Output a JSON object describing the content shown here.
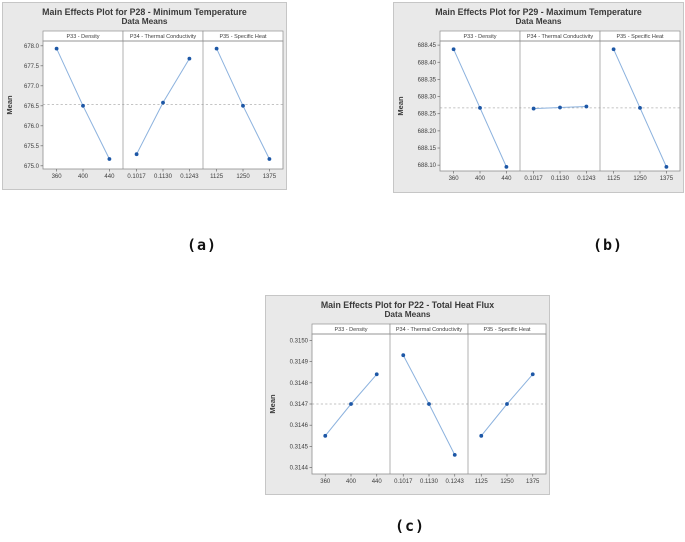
{
  "colors": {
    "figure_bg": "#e9e9e9",
    "plot_bg": "#ffffff",
    "border": "#8f8f8f",
    "tick": "#6b6b6b",
    "text": "#3d3d3d",
    "title_text": "#3a3a3a",
    "line": "#8cb2de",
    "marker": "#1d57a6",
    "mean_line": "#b0b0b0",
    "caption_text": "#111111"
  },
  "chart_data": [
    {
      "type": "line",
      "caption": "(a)",
      "title": "Main Effects Plot for P28 - Minimum Temperature",
      "subtitle": "Data Means",
      "ylabel": "Mean",
      "ylim": [
        674.92,
        678.12
      ],
      "yticks": [
        "678.0",
        "677.5",
        "677.0",
        "676.5",
        "676.0",
        "675.5",
        "675.0"
      ],
      "grand_mean": 676.53,
      "legend": "none",
      "grid": "mean-reference-line-only",
      "panels": [
        {
          "label": "P33 - Density",
          "categories": [
            "360",
            "400",
            "440"
          ],
          "values": [
            677.93,
            676.5,
            675.17
          ]
        },
        {
          "label": "P34 - Thermal Conductivity",
          "categories": [
            "0.1017",
            "0.1130",
            "0.1243"
          ],
          "values": [
            675.29,
            676.58,
            677.68
          ]
        },
        {
          "label": "P35 - Specific Heat",
          "categories": [
            "1125",
            "1250",
            "1375"
          ],
          "values": [
            677.93,
            676.5,
            675.17
          ]
        }
      ]
    },
    {
      "type": "line",
      "caption": "(b)",
      "title": "Main Effects Plot for P29 - Maximum Temperature",
      "subtitle": "Data Means",
      "ylabel": "Mean",
      "ylim": [
        688.083,
        688.462
      ],
      "yticks": [
        "688.45",
        "688.40",
        "688.35",
        "688.30",
        "688.25",
        "688.20",
        "688.15",
        "688.10"
      ],
      "grand_mean": 688.267,
      "legend": "none",
      "grid": "mean-reference-line-only",
      "panels": [
        {
          "label": "P33 - Density",
          "categories": [
            "360",
            "400",
            "440"
          ],
          "values": [
            688.438,
            688.267,
            688.095
          ]
        },
        {
          "label": "P34 - Thermal Conductivity",
          "categories": [
            "0.1017",
            "0.1130",
            "0.1243"
          ],
          "values": [
            688.265,
            688.268,
            688.271
          ]
        },
        {
          "label": "P35 - Specific Heat",
          "categories": [
            "1125",
            "1250",
            "1375"
          ],
          "values": [
            688.438,
            688.267,
            688.095
          ]
        }
      ]
    },
    {
      "type": "line",
      "caption": "(c)",
      "title": "Main Effects Plot for P22 - Total Heat Flux",
      "subtitle": "Data Means",
      "ylabel": "Mean",
      "ylim": [
        0.31437,
        0.31503
      ],
      "yticks": [
        "0.3150",
        "0.3149",
        "0.3148",
        "0.3147",
        "0.3146",
        "0.3145",
        "0.3144"
      ],
      "grand_mean": 0.3147,
      "legend": "none",
      "grid": "mean-reference-line-only",
      "panels": [
        {
          "label": "P33 - Density",
          "categories": [
            "360",
            "400",
            "440"
          ],
          "values": [
            0.31455,
            0.3147,
            0.31484
          ]
        },
        {
          "label": "P34 - Thermal Conductivity",
          "categories": [
            "0.1017",
            "0.1130",
            "0.1243"
          ],
          "values": [
            0.31493,
            0.3147,
            0.31446
          ]
        },
        {
          "label": "P35 - Specific Heat",
          "categories": [
            "1125",
            "1250",
            "1375"
          ],
          "values": [
            0.31455,
            0.3147,
            0.31484
          ]
        }
      ]
    }
  ]
}
